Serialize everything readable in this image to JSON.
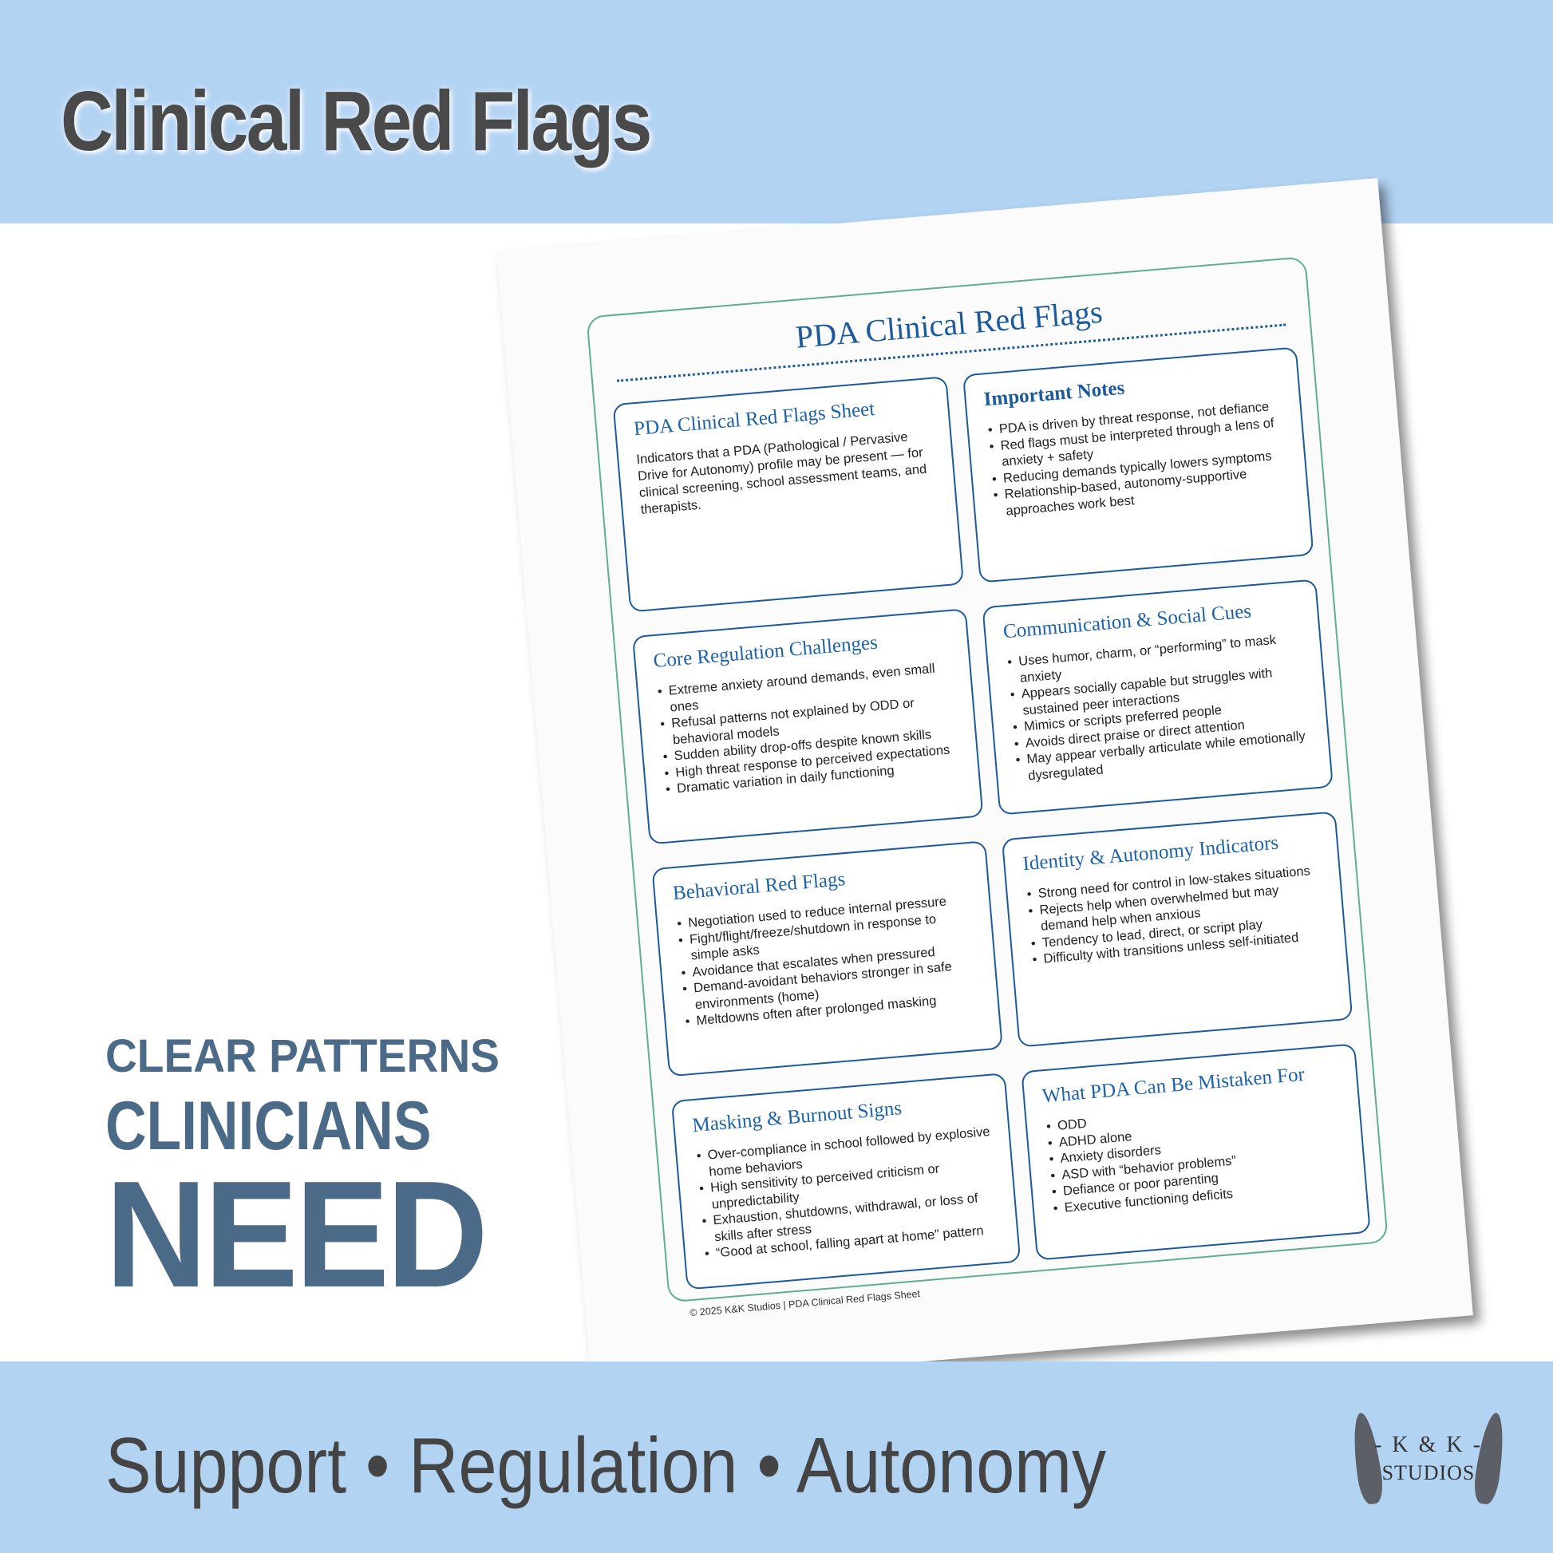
{
  "header": {
    "title": "Clinical Red Flags"
  },
  "tagline": {
    "line1": "CLEAR PATTERNS",
    "line2": "CLINICIANS",
    "line3": "NEED"
  },
  "footer": {
    "slogan": "Support • Regulation • Autonomy"
  },
  "logo": {
    "line1": "- K & K -",
    "line2": "STUDIOS"
  },
  "colors": {
    "band": "#b3d3f3",
    "accent": "#1d5a9c",
    "frame": "#5fae94",
    "tagline": "#4b6a87"
  },
  "sheet": {
    "title": "PDA Clinical Red Flags",
    "footer": "© 2025 K&K Studios | PDA Clinical Red Flags Sheet",
    "intro": {
      "title": "PDA Clinical Red Flags Sheet",
      "text": "Indicators that a PDA (Pathological / Pervasive Drive for Autonomy) profile may be present — for clinical screening, school assessment teams, and therapists."
    },
    "notes": {
      "title": "Important Notes",
      "items": [
        "PDA is driven by threat response, not defiance",
        "Red flags must be interpreted through a lens of anxiety + safety",
        "Reducing demands typically lowers symptoms",
        "Relationship-based, autonomy-supportive approaches work best"
      ]
    },
    "core": {
      "title": "Core Regulation Challenges",
      "items": [
        "Extreme anxiety around demands, even small ones",
        "Refusal patterns not explained by ODD or behavioral models",
        "Sudden ability drop-offs despite known skills",
        "High threat response to perceived expectations",
        "Dramatic variation in daily functioning"
      ]
    },
    "comm": {
      "title": "Communication & Social Cues",
      "items": [
        "Uses humor, charm, or “performing” to mask anxiety",
        "Appears socially capable but struggles with sustained peer interactions",
        "Mimics or scripts preferred people",
        "Avoids direct praise or direct attention",
        "May appear verbally articulate while emotionally dysregulated"
      ]
    },
    "behav": {
      "title": "Behavioral Red Flags",
      "items": [
        "Negotiation used to reduce internal pressure",
        "Fight/flight/freeze/shutdown in response to simple asks",
        "Avoidance that escalates when pressured",
        "Demand-avoidant behaviors stronger in safe environments (home)",
        "Meltdowns often after prolonged masking"
      ]
    },
    "ident": {
      "title": "Identity & Autonomy Indicators",
      "items": [
        "Strong need for control in low-stakes situations",
        "Rejects help when overwhelmed but may demand help when anxious",
        "Tendency to lead, direct, or script play",
        "Difficulty with transitions unless self-initiated"
      ]
    },
    "mask": {
      "title": "Masking & Burnout Signs",
      "items": [
        "Over-compliance in school followed by explosive home behaviors",
        "High sensitivity to perceived criticism or unpredictability",
        "Exhaustion, shutdowns, withdrawal, or loss of skills after stress",
        "“Good at school, falling apart at home” pattern"
      ]
    },
    "mistaken": {
      "title": "What PDA Can Be Mistaken For",
      "items": [
        "ODD",
        "ADHD alone",
        "Anxiety disorders",
        "ASD with “behavior problems”",
        "Defiance or poor parenting",
        "Executive functioning deficits"
      ]
    }
  }
}
